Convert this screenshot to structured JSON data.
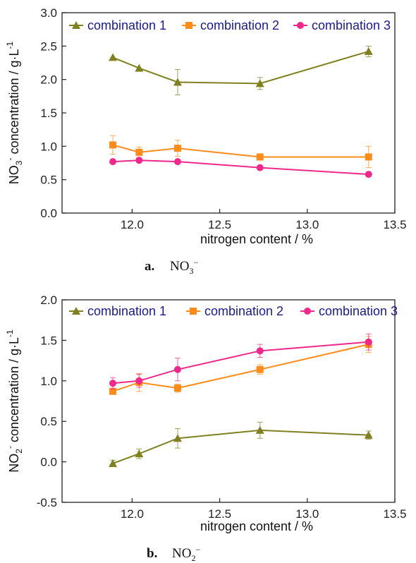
{
  "figure": {
    "captions": [
      {
        "letter": "a.",
        "formula": "NO",
        "subscript": "3",
        "superscript": "−"
      },
      {
        "letter": "b.",
        "formula": "NO",
        "subscript": "2",
        "superscript": "−"
      }
    ]
  },
  "chart_data": [
    {
      "type": "line",
      "title": "",
      "xlabel": "nitrogen content / %",
      "ylabel": {
        "prefix": "NO",
        "sub": "3",
        "sup": "-",
        "rest": " concentration / g·L",
        "unit_sup": "-1"
      },
      "xlim": [
        11.6,
        13.5
      ],
      "ylim": [
        0,
        3.0
      ],
      "xticks": [
        12.0,
        12.5,
        13.0,
        13.5
      ],
      "yticks": [
        0.0,
        0.5,
        1.0,
        1.5,
        2.0,
        2.5,
        3.0
      ],
      "xtick_labels": [
        "12.0",
        "12.5",
        "13.0",
        "13.5"
      ],
      "ytick_labels": [
        "0.0",
        "0.5",
        "1.0",
        "1.5",
        "2.0",
        "2.5",
        "3.0"
      ],
      "legend": "top",
      "grid": false,
      "x": [
        11.89,
        12.04,
        12.26,
        12.73,
        13.35
      ],
      "series": [
        {
          "name": "combination 1",
          "marker": "triangle",
          "color": "#808020",
          "values": [
            2.33,
            2.17,
            1.96,
            1.94,
            2.42
          ],
          "errors": [
            0.0,
            0.0,
            0.19,
            0.09,
            0.08
          ]
        },
        {
          "name": "combination 2",
          "marker": "square",
          "color": "#ff8c1a",
          "values": [
            1.02,
            0.91,
            0.97,
            0.84,
            0.84
          ],
          "errors": [
            0.14,
            0.08,
            0.12,
            0.0,
            0.16
          ]
        },
        {
          "name": "combination 3",
          "marker": "circle",
          "color": "#f0288c",
          "values": [
            0.77,
            0.79,
            0.77,
            0.68,
            0.58
          ],
          "errors": [
            0.0,
            0.0,
            0.0,
            0.0,
            0.0
          ]
        }
      ]
    },
    {
      "type": "line",
      "title": "",
      "xlabel": "nitrogen content / %",
      "ylabel": {
        "prefix": "NO",
        "sub": "2",
        "sup": "-",
        "rest": " concentration / g·L",
        "unit_sup": "-1"
      },
      "xlim": [
        11.6,
        13.5
      ],
      "ylim": [
        -0.5,
        2.0
      ],
      "xticks": [
        12.0,
        12.5,
        13.0,
        13.5
      ],
      "yticks": [
        -0.5,
        0.0,
        0.5,
        1.0,
        1.5,
        2.0
      ],
      "xtick_labels": [
        "12.0",
        "12.5",
        "13.0",
        "13.5"
      ],
      "ytick_labels": [
        "-0.5",
        "0.0",
        "0.5",
        "1.0",
        "1.5",
        "2.0"
      ],
      "legend": "top",
      "grid": false,
      "x": [
        11.89,
        12.04,
        12.26,
        12.73,
        13.35
      ],
      "series": [
        {
          "name": "combination 1",
          "marker": "triangle",
          "color": "#808020",
          "values": [
            -0.02,
            0.1,
            0.29,
            0.39,
            0.33
          ],
          "errors": [
            0.04,
            0.06,
            0.12,
            0.1,
            0.05
          ]
        },
        {
          "name": "combination 2",
          "marker": "square",
          "color": "#ff8c1a",
          "values": [
            0.87,
            0.98,
            0.91,
            1.14,
            1.45
          ],
          "errors": [
            0.03,
            0.11,
            0.05,
            0.06,
            0.1
          ]
        },
        {
          "name": "combination 3",
          "marker": "circle",
          "color": "#f0288c",
          "values": [
            0.97,
            1.0,
            1.14,
            1.37,
            1.48
          ],
          "errors": [
            0.07,
            0.08,
            0.14,
            0.08,
            0.1
          ]
        }
      ]
    }
  ]
}
